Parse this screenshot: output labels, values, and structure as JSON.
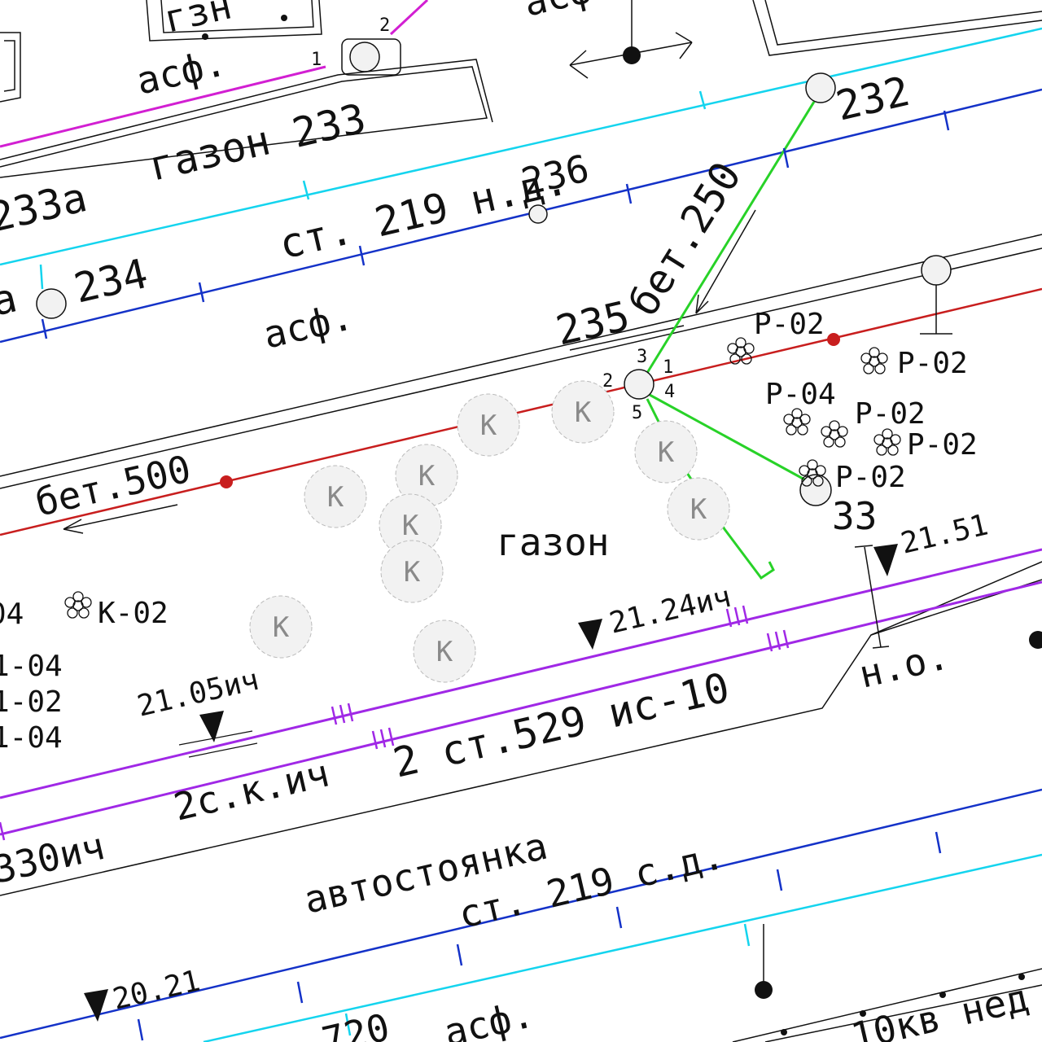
{
  "colors": {
    "background": "#ffffff",
    "ink": "#111111",
    "line_magenta": "#d21fd2",
    "line_cyan": "#14d4ee",
    "line_blue": "#1432c8",
    "line_red": "#c81e1e",
    "line_green": "#28d228",
    "line_violet": "#a028e6",
    "tree_fill": "#f2f2f2",
    "tree_letter": "#8a8a8a"
  },
  "icons": {
    "tree": "tree-crown-k",
    "shrub": "shrub-flower-icon",
    "well": "manhole-circle",
    "elevation": "elevation-triangle-icon",
    "pole": "light-pole-icon",
    "red_point": "red-node-point"
  },
  "labels": {
    "gzn": "гзн",
    "asf_top": "асф.",
    "asf_top_right": "асф.",
    "asf_mid": "асф.",
    "asf_bottom": "асф.",
    "gazon_233": "газон 233",
    "num_233a": "233а",
    "num_232": "232",
    "num_234": "234",
    "prefix_a": "а",
    "num_235": "235",
    "num_236": "236",
    "st_219_nd": "ст. 219 н.д.",
    "bet_250": "бет.250",
    "bet_500": "бет.500",
    "gazon": "газон",
    "num_33": "33",
    "num_720": "720",
    "no": "н.о.",
    "avtostoyanka": "автостоянка",
    "st_219_sd": "ст. 219 с.д.",
    "st_529": "2 ст.529 ис-10",
    "s2k_ich": "2с.к.ич",
    "ich_330": "330ич",
    "kv_10": "10кв нед",
    "well_1": "1",
    "well_2": "2",
    "well_3": "3",
    "well_4": "4",
    "well_5": "5",
    "top_1": "1",
    "top_2": "2"
  },
  "elevations": {
    "e_21_51": "21.51",
    "e_21_24": "21.24ич",
    "e_21_05": "21.05ич",
    "e_20_21": "20.21"
  },
  "plants": {
    "p02_a": "Р-02",
    "p02_b": "Р-02",
    "p04": "Р-04",
    "p02_c": "Р-02",
    "p02_d": "Р-02",
    "p02_e": "Р-02",
    "k02": "К-02",
    "left_04": "04",
    "left_1_04_a": "1-04",
    "left_1_02": "1-02",
    "left_1_04_b": "1-04"
  },
  "tree_letter": "К"
}
